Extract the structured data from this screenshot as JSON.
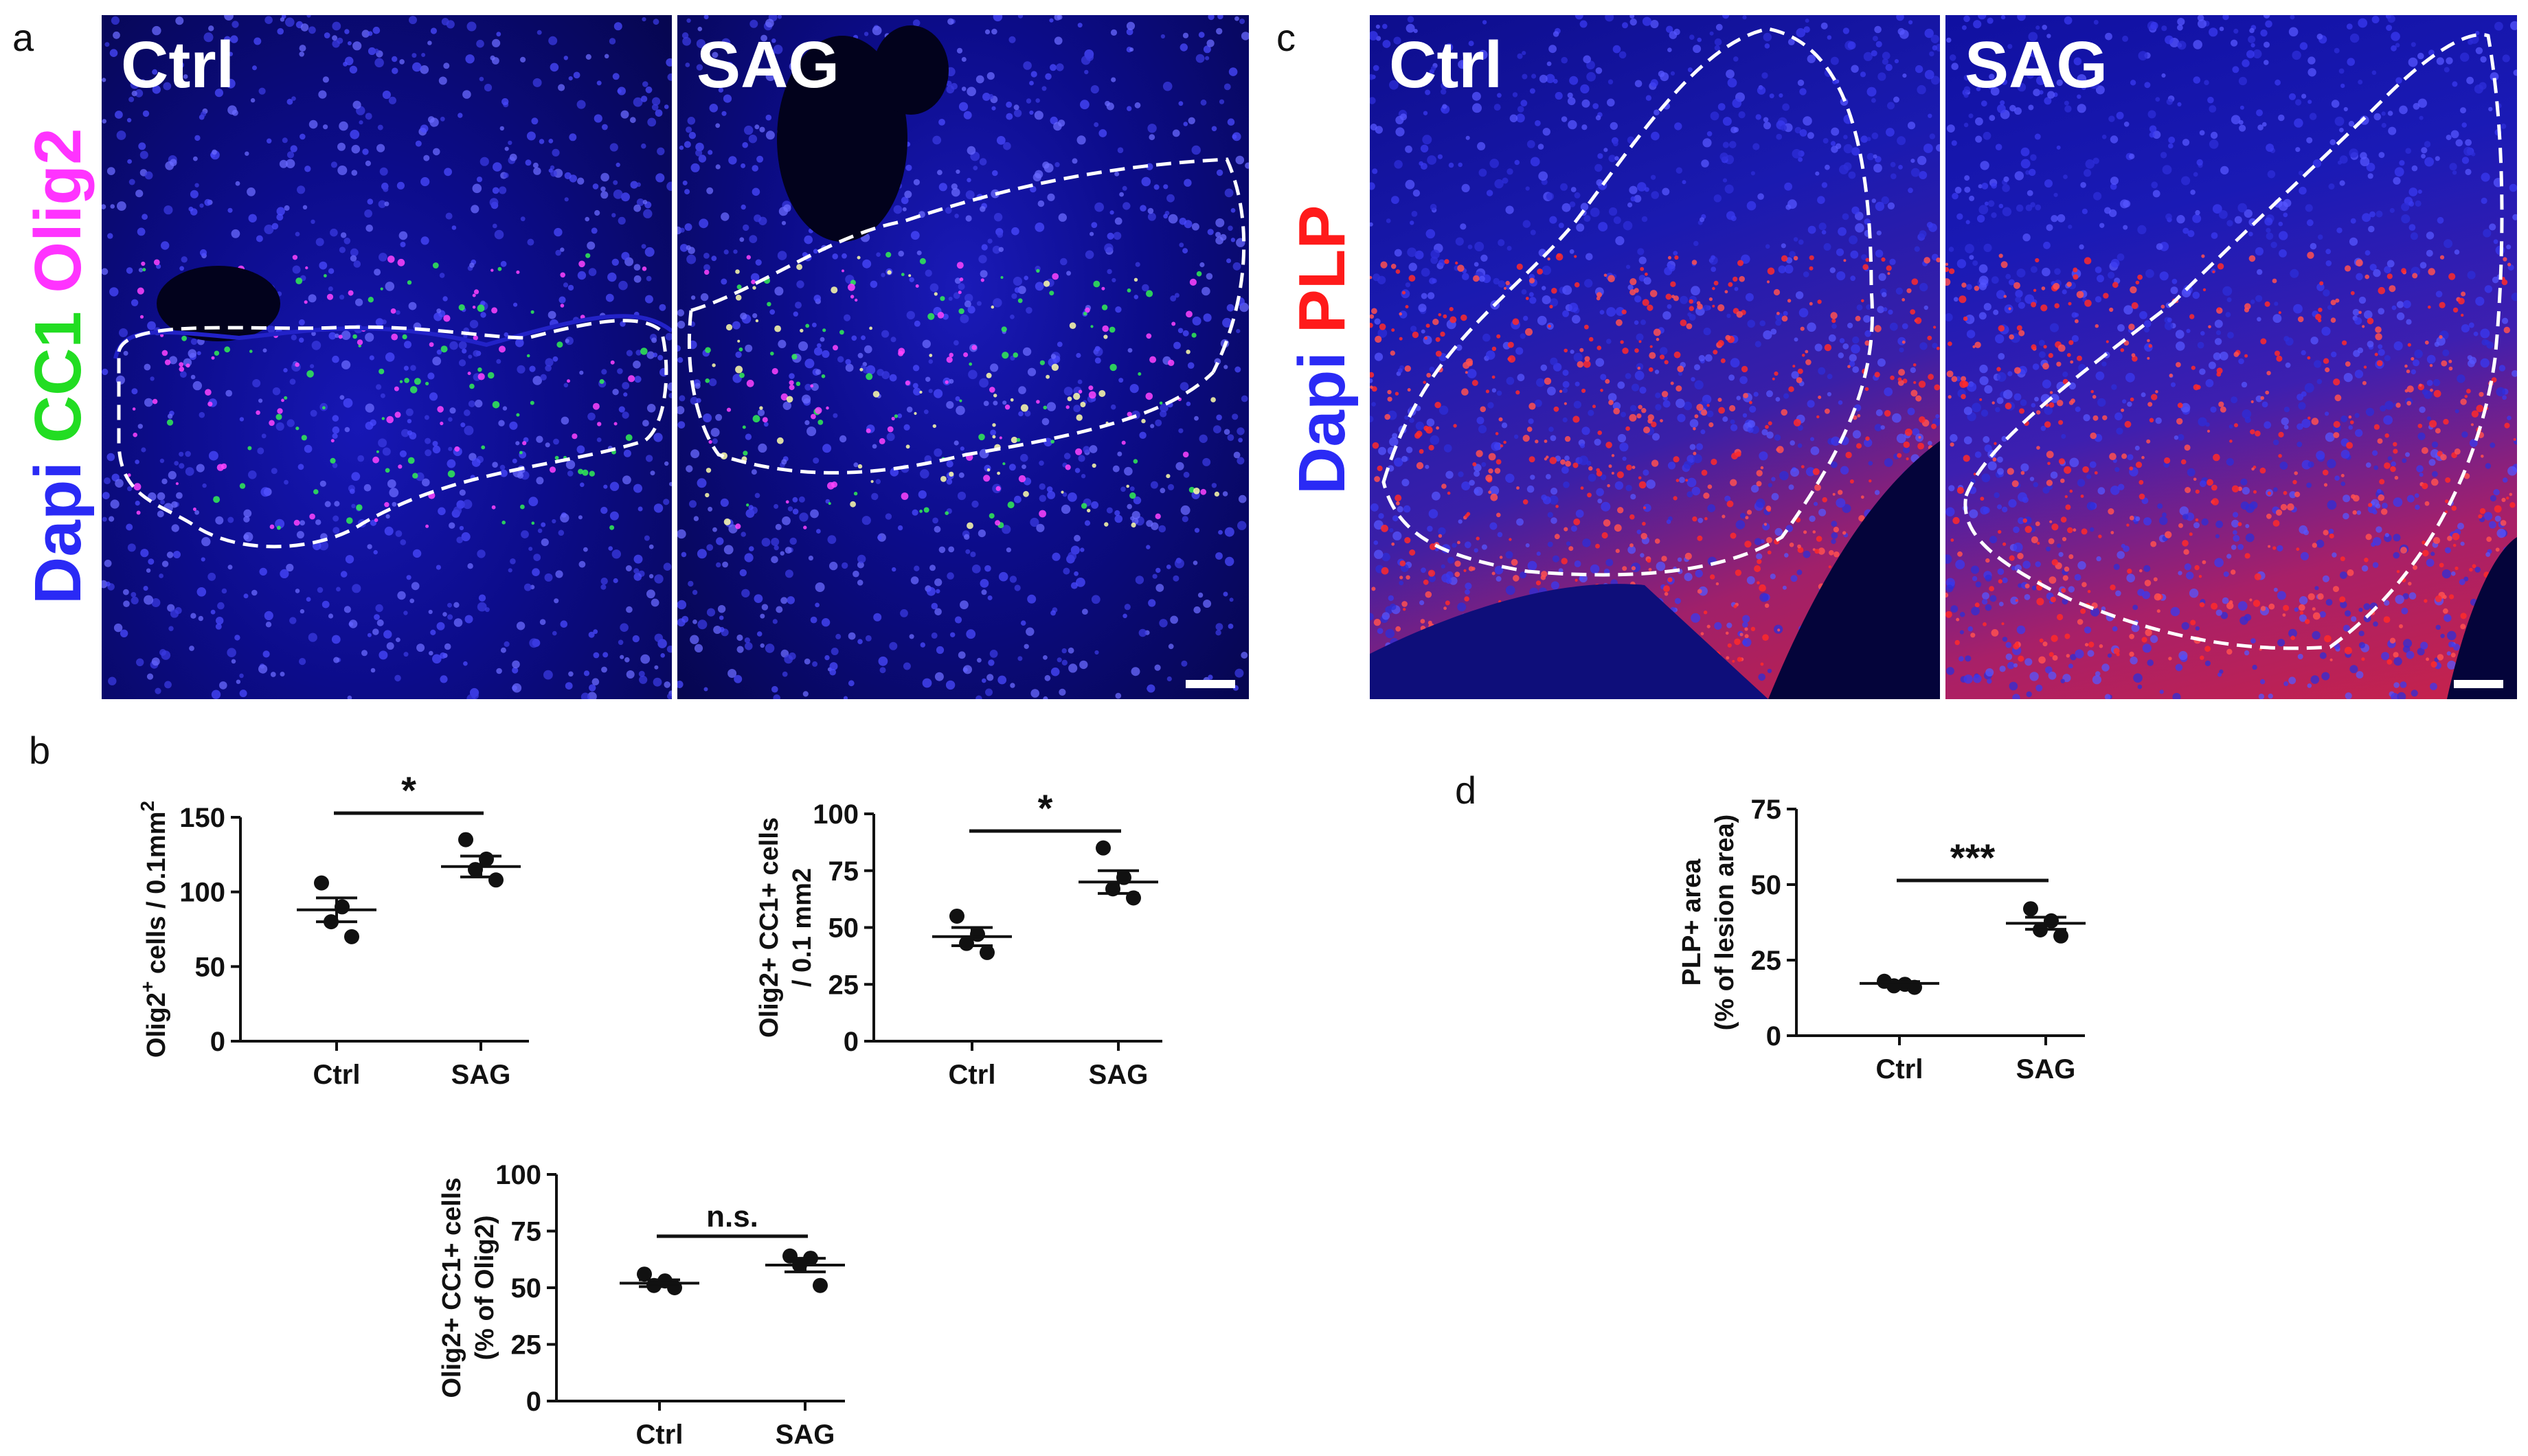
{
  "panel_labels": {
    "a": "a",
    "b": "b",
    "c": "c",
    "d": "d"
  },
  "colors": {
    "dapi": "#2a2af5",
    "cc1": "#22dd22",
    "olig2": "#ff33ff",
    "plp": "#ff1a1a",
    "tissue_bg": "#0a0a6a",
    "outline": "#ffffff",
    "axis": "#111111"
  },
  "panel_a": {
    "stain_label": {
      "dapi": "Dapi",
      "cc1": "CC1",
      "olig2": "Olig2"
    },
    "images": [
      {
        "label": "Ctrl"
      },
      {
        "label": "SAG"
      }
    ]
  },
  "panel_c": {
    "stain_label": {
      "dapi": "Dapi",
      "plp": "PLP"
    },
    "images": [
      {
        "label": "Ctrl"
      },
      {
        "label": "SAG"
      }
    ]
  },
  "chart_data": [
    {
      "id": "b1",
      "type": "scatter",
      "ylabel_main": "Olig2",
      "ylabel_sup": "+",
      "ylabel_rest": " cells / 0.1mm",
      "ylabel_sup2": "2",
      "categories": [
        "Ctrl",
        "SAG"
      ],
      "ylim": [
        0,
        150
      ],
      "yticks": [
        0,
        50,
        100,
        150
      ],
      "points": [
        [
          106,
          90,
          80,
          70
        ],
        [
          135,
          122,
          115,
          108
        ]
      ],
      "means": [
        88,
        117
      ],
      "sem": [
        8,
        7
      ],
      "significance": "*"
    },
    {
      "id": "b2",
      "type": "scatter",
      "ylabel_line1": "Olig2+ CC1+ cells",
      "ylabel_line2": "/ 0.1 mm2",
      "categories": [
        "Ctrl",
        "SAG"
      ],
      "ylim": [
        0,
        100
      ],
      "yticks": [
        0,
        25,
        50,
        75,
        100
      ],
      "points": [
        [
          55,
          47,
          43,
          39
        ],
        [
          85,
          72,
          67,
          63
        ]
      ],
      "means": [
        46,
        70
      ],
      "sem": [
        4,
        5
      ],
      "significance": "*"
    },
    {
      "id": "b3",
      "type": "scatter",
      "ylabel_line1": "Olig2+ CC1+ cells",
      "ylabel_line2": "(% of Olig2)",
      "categories": [
        "Ctrl",
        "SAG"
      ],
      "ylim": [
        0,
        100
      ],
      "yticks": [
        0,
        25,
        50,
        75,
        100
      ],
      "points": [
        [
          56,
          53,
          51,
          50
        ],
        [
          64,
          63,
          60,
          51
        ]
      ],
      "means": [
        52,
        60
      ],
      "sem": [
        1.5,
        3
      ],
      "significance": "n.s."
    },
    {
      "id": "d",
      "type": "scatter",
      "ylabel_line1": "PLP+ area",
      "ylabel_line2": "(% of lesion area)",
      "categories": [
        "Ctrl",
        "SAG"
      ],
      "ylim": [
        0,
        75
      ],
      "yticks": [
        0,
        25,
        50,
        75
      ],
      "points": [
        [
          18,
          17,
          16.5,
          16
        ],
        [
          42,
          38,
          35,
          33
        ]
      ],
      "means": [
        17.3,
        37.2
      ],
      "sem": [
        0.6,
        2
      ],
      "significance": "***"
    }
  ]
}
